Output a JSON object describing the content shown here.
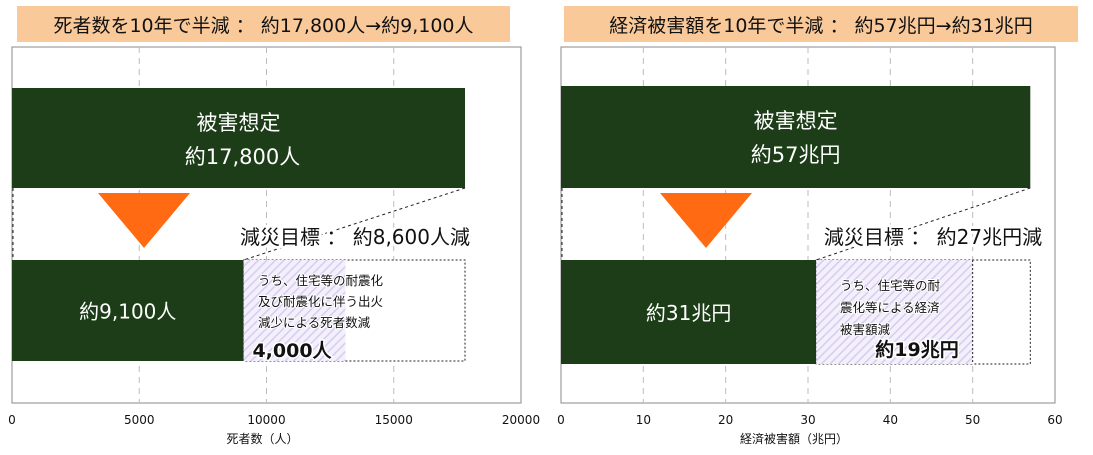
{
  "colors": {
    "bar": "#1c3d17",
    "arrow": "#ff6a13",
    "title_bg": "#f9c99a",
    "hatch": "#d6ccf0",
    "grid": "#bdbdbd"
  },
  "chart_data": [
    {
      "type": "bar",
      "title": "死者数を10年で半減 ： 約17,800人→約9,100人",
      "xlabel": "死者数（人）",
      "xlim": [
        0,
        20000
      ],
      "xticks": [
        "0",
        "5000",
        "10000",
        "15000",
        "20000"
      ],
      "grid": true,
      "bars": [
        {
          "name": "damage",
          "value": 17800,
          "label_lines": [
            "被害想定",
            "約17,800人"
          ]
        },
        {
          "name": "reduced",
          "value": 9100,
          "label_lines": [
            "約9,100人"
          ]
        }
      ],
      "reduction": {
        "label": "減災目標 ： 約8,600人減",
        "from": 9100,
        "to": 17800
      },
      "segment": {
        "from": 9100,
        "to": 13100,
        "lines": [
          "うち、住宅等の耐震化",
          "及び耐震化に伴う出火",
          "減少による死者数減"
        ],
        "value_label": "4,000人"
      }
    },
    {
      "type": "bar",
      "title": "経済被害額を10年で半減 ： 約57兆円→約31兆円",
      "xlabel": "経済被害額（兆円）",
      "xlim": [
        0,
        60
      ],
      "xticks": [
        "0",
        "10",
        "20",
        "30",
        "40",
        "50",
        "60"
      ],
      "grid": true,
      "bars": [
        {
          "name": "damage",
          "value": 57,
          "label_lines": [
            "被害想定",
            "約57兆円"
          ]
        },
        {
          "name": "reduced",
          "value": 31,
          "label_lines": [
            "約31兆円"
          ]
        }
      ],
      "reduction": {
        "label": "減災目標 ： 約27兆円減",
        "from": 31,
        "to": 57
      },
      "segment": {
        "from": 31,
        "to": 50,
        "lines": [
          "うち、住宅等の耐",
          "震化等による経済",
          "被害額減"
        ],
        "value_label": "約19兆円"
      }
    }
  ]
}
